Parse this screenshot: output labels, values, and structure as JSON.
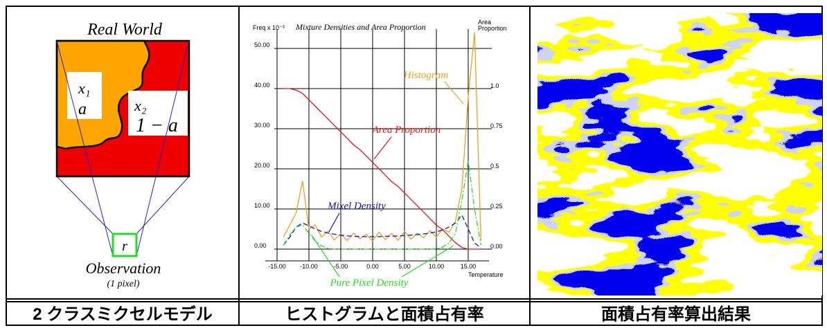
{
  "left_panel": {
    "title": "Real World",
    "region_1": {
      "label": "x₁",
      "proportion": "a"
    },
    "region_2": {
      "label": "x₂",
      "proportion": "1 − a"
    },
    "pixel": "r",
    "observation": "Observation",
    "observation_note": "(1 pixel)"
  },
  "chart_data": {
    "type": "line",
    "title": "Mixture Densities and Area Proportion",
    "y_label": "Freq x 10⁻³",
    "y2_label": [
      "Area",
      "Proportion"
    ],
    "x_label": "Temperature",
    "x": [
      -14,
      -13,
      -12,
      -11,
      -10,
      -9,
      -8,
      -7,
      -6,
      -5,
      -4,
      -3,
      -2,
      -1,
      0,
      1,
      2,
      3,
      4,
      5,
      6,
      7,
      8,
      9,
      10,
      11,
      12,
      13,
      14,
      15,
      16,
      17
    ],
    "series": [
      {
        "name": "Histogram",
        "color": "#f0a020",
        "line_style": "solid",
        "values": [
          3,
          6,
          9,
          17,
          5,
          6,
          3,
          4.5,
          2.3,
          3.8,
          2.1,
          4,
          2.6,
          3.7,
          2,
          4.2,
          2.4,
          3.9,
          2.2,
          4.4,
          2.5,
          4,
          2.8,
          4.6,
          3,
          5,
          4.2,
          7,
          15,
          38,
          54,
          2
        ]
      },
      {
        "name": "Area Proportion",
        "color": "#ee1111",
        "line_style": "solid",
        "axis": "y2",
        "values": [
          1,
          1,
          0.99,
          0.97,
          0.93,
          0.89,
          0.85,
          0.81,
          0.77,
          0.73,
          0.69,
          0.65,
          0.62,
          0.58,
          0.54,
          0.5,
          0.46,
          0.42,
          0.39,
          0.35,
          0.31,
          0.27,
          0.23,
          0.19,
          0.15,
          0.12,
          0.08,
          0.04,
          0.01,
          0,
          0,
          0
        ]
      },
      {
        "name": "Mixel Density",
        "color": "#1111cc",
        "line_style": "dashed",
        "values": [
          1,
          3,
          5.5,
          6.5,
          5.8,
          5,
          4.4,
          4,
          3.7,
          3.5,
          3.3,
          3.2,
          3.1,
          3.1,
          3.1,
          3.1,
          3.2,
          3.2,
          3.3,
          3.4,
          3.5,
          3.6,
          3.8,
          4,
          4.3,
          4.8,
          5.5,
          6.5,
          8.5,
          5,
          1.5,
          0.3
        ]
      },
      {
        "name": "Pure Pixel Density",
        "color": "#22dd22",
        "line_style": "dashdot",
        "values": [
          1,
          3.5,
          5.5,
          6,
          4,
          2,
          0.8,
          0.2,
          0,
          0,
          0,
          0,
          0,
          0,
          0,
          0,
          0,
          0,
          0,
          0,
          0,
          0,
          0,
          0,
          0.1,
          0.5,
          1.5,
          4,
          12,
          22,
          10,
          1
        ]
      }
    ],
    "xlim": [
      -17,
      18
    ],
    "xticks": [
      {
        "value": -15,
        "label": "-15.00"
      },
      {
        "value": -10,
        "label": "-10.00"
      },
      {
        "value": -5,
        "label": "-5.00"
      },
      {
        "value": 0,
        "label": "0.00"
      },
      {
        "value": 5,
        "label": "5.00"
      },
      {
        "value": 10,
        "label": "10.00"
      },
      {
        "value": 15,
        "label": "15.00"
      }
    ],
    "ylim": [
      -3,
      55
    ],
    "yticks": [
      {
        "value": 0,
        "label": "0.00"
      },
      {
        "value": 10,
        "label": "10.00"
      },
      {
        "value": 20,
        "label": "20.00"
      },
      {
        "value": 30,
        "label": "30.00"
      },
      {
        "value": 40,
        "label": "40.00"
      },
      {
        "value": 50,
        "label": "50.00"
      }
    ],
    "y2lim": [
      -0.075,
      1.375
    ],
    "y2ticks": [
      {
        "value": 0,
        "label": "0.00"
      },
      0.25,
      0.5,
      0.75,
      {
        "value": 1,
        "label": "1.0"
      }
    ],
    "grid": true
  },
  "captions": [
    "2 クラスミクセルモデル",
    "ヒストグラムと面積占有率",
    "面積占有率算出結果"
  ]
}
